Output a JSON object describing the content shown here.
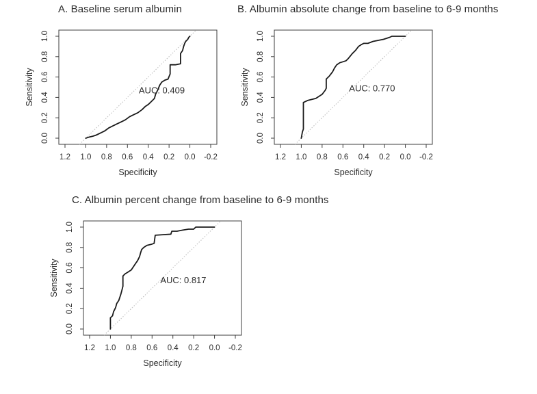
{
  "figure": {
    "background": "#ffffff",
    "colors": {
      "curve": "#1a1a1a",
      "reference_line": "#c3c3c3",
      "box": "#3c3c3c",
      "tick": "#3c3c3c",
      "text": "#2b2b2b"
    }
  },
  "chart_data": [
    {
      "type": "line",
      "panel": "A",
      "title": "A. Baseline serum albumin",
      "xlabel": "Specificity",
      "ylabel": "Sensitivity",
      "x_ticks": [
        1.2,
        1.0,
        0.8,
        0.6,
        0.4,
        0.2,
        0.0,
        -0.2
      ],
      "y_ticks": [
        0.0,
        0.2,
        0.4,
        0.6,
        0.8,
        1.0
      ],
      "xlim": [
        1.2,
        -0.2
      ],
      "ylim": [
        0.0,
        1.0
      ],
      "x_axis_reversed": true,
      "grid": false,
      "reference_line": "diagonal dotted chance line from (1,0) to (0,1)",
      "annotation": {
        "text": "AUC: 0.409",
        "x": 0.27,
        "y": 0.44
      },
      "auc": 0.409,
      "series": [
        {
          "name": "ROC curve",
          "points": [
            [
              1.0,
              0.0
            ],
            [
              0.97,
              0.01
            ],
            [
              0.93,
              0.02
            ],
            [
              0.9,
              0.03
            ],
            [
              0.86,
              0.05
            ],
            [
              0.82,
              0.07
            ],
            [
              0.78,
              0.1
            ],
            [
              0.74,
              0.12
            ],
            [
              0.7,
              0.14
            ],
            [
              0.66,
              0.16
            ],
            [
              0.62,
              0.18
            ],
            [
              0.58,
              0.21
            ],
            [
              0.54,
              0.23
            ],
            [
              0.5,
              0.25
            ],
            [
              0.46,
              0.28
            ],
            [
              0.43,
              0.31
            ],
            [
              0.4,
              0.33
            ],
            [
              0.37,
              0.36
            ],
            [
              0.34,
              0.39
            ],
            [
              0.33,
              0.43
            ],
            [
              0.31,
              0.47
            ],
            [
              0.29,
              0.52
            ],
            [
              0.27,
              0.55
            ],
            [
              0.24,
              0.57
            ],
            [
              0.21,
              0.58
            ],
            [
              0.19,
              0.63
            ],
            [
              0.19,
              0.72
            ],
            [
              0.14,
              0.72
            ],
            [
              0.09,
              0.73
            ],
            [
              0.09,
              0.83
            ],
            [
              0.07,
              0.86
            ],
            [
              0.06,
              0.9
            ],
            [
              0.05,
              0.93
            ],
            [
              0.04,
              0.95
            ],
            [
              0.02,
              0.97
            ],
            [
              0.01,
              0.99
            ],
            [
              0.0,
              1.0
            ]
          ]
        }
      ]
    },
    {
      "type": "line",
      "panel": "B",
      "title": "B. Albumin absolute change from baseline to 6-9 months",
      "xlabel": "Specificity",
      "ylabel": "Sensitivity",
      "x_ticks": [
        1.2,
        1.0,
        0.8,
        0.6,
        0.4,
        0.2,
        0.0,
        -0.2
      ],
      "y_ticks": [
        0.0,
        0.2,
        0.4,
        0.6,
        0.8,
        1.0
      ],
      "xlim": [
        1.2,
        -0.2
      ],
      "ylim": [
        0.0,
        1.0
      ],
      "x_axis_reversed": true,
      "grid": false,
      "reference_line": "diagonal dotted chance line from (1,0) to (0,1)",
      "annotation": {
        "text": "AUC: 0.770",
        "x": 0.32,
        "y": 0.46
      },
      "auc": 0.77,
      "series": [
        {
          "name": "ROC curve",
          "points": [
            [
              1.0,
              0.0
            ],
            [
              0.99,
              0.06
            ],
            [
              0.98,
              0.09
            ],
            [
              0.98,
              0.35
            ],
            [
              0.94,
              0.37
            ],
            [
              0.9,
              0.38
            ],
            [
              0.86,
              0.39
            ],
            [
              0.83,
              0.41
            ],
            [
              0.8,
              0.43
            ],
            [
              0.77,
              0.47
            ],
            [
              0.76,
              0.49
            ],
            [
              0.76,
              0.58
            ],
            [
              0.73,
              0.61
            ],
            [
              0.7,
              0.65
            ],
            [
              0.68,
              0.69
            ],
            [
              0.66,
              0.72
            ],
            [
              0.63,
              0.74
            ],
            [
              0.6,
              0.75
            ],
            [
              0.57,
              0.76
            ],
            [
              0.55,
              0.78
            ],
            [
              0.51,
              0.83
            ],
            [
              0.48,
              0.86
            ],
            [
              0.45,
              0.9
            ],
            [
              0.42,
              0.92
            ],
            [
              0.4,
              0.93
            ],
            [
              0.36,
              0.93
            ],
            [
              0.31,
              0.95
            ],
            [
              0.26,
              0.96
            ],
            [
              0.21,
              0.97
            ],
            [
              0.18,
              0.98
            ],
            [
              0.15,
              0.99
            ],
            [
              0.13,
              1.0
            ],
            [
              0.0,
              1.0
            ]
          ]
        }
      ]
    },
    {
      "type": "line",
      "panel": "C",
      "title": "C. Albumin percent change from baseline to 6-9 months",
      "xlabel": "Specificity",
      "ylabel": "Sensitivity",
      "x_ticks": [
        1.2,
        1.0,
        0.8,
        0.6,
        0.4,
        0.2,
        0.0,
        -0.2
      ],
      "y_ticks": [
        0.0,
        0.2,
        0.4,
        0.6,
        0.8,
        1.0
      ],
      "xlim": [
        1.2,
        -0.2
      ],
      "ylim": [
        0.0,
        1.0
      ],
      "x_axis_reversed": true,
      "grid": false,
      "reference_line": "diagonal dotted chance line from (1,0) to (0,1)",
      "annotation": {
        "text": "AUC: 0.817",
        "x": 0.3,
        "y": 0.45
      },
      "auc": 0.817,
      "series": [
        {
          "name": "ROC curve",
          "points": [
            [
              1.0,
              0.0
            ],
            [
              1.0,
              0.11
            ],
            [
              0.98,
              0.13
            ],
            [
              0.97,
              0.17
            ],
            [
              0.95,
              0.21
            ],
            [
              0.94,
              0.25
            ],
            [
              0.92,
              0.28
            ],
            [
              0.91,
              0.31
            ],
            [
              0.9,
              0.34
            ],
            [
              0.89,
              0.38
            ],
            [
              0.88,
              0.42
            ],
            [
              0.88,
              0.52
            ],
            [
              0.86,
              0.54
            ],
            [
              0.83,
              0.56
            ],
            [
              0.8,
              0.58
            ],
            [
              0.78,
              0.61
            ],
            [
              0.76,
              0.64
            ],
            [
              0.74,
              0.67
            ],
            [
              0.72,
              0.71
            ],
            [
              0.71,
              0.75
            ],
            [
              0.7,
              0.78
            ],
            [
              0.68,
              0.8
            ],
            [
              0.65,
              0.82
            ],
            [
              0.61,
              0.83
            ],
            [
              0.58,
              0.84
            ],
            [
              0.57,
              0.92
            ],
            [
              0.42,
              0.93
            ],
            [
              0.41,
              0.96
            ],
            [
              0.36,
              0.96
            ],
            [
              0.31,
              0.97
            ],
            [
              0.25,
              0.98
            ],
            [
              0.2,
              0.98
            ],
            [
              0.18,
              1.0
            ],
            [
              0.0,
              1.0
            ]
          ]
        }
      ]
    }
  ]
}
